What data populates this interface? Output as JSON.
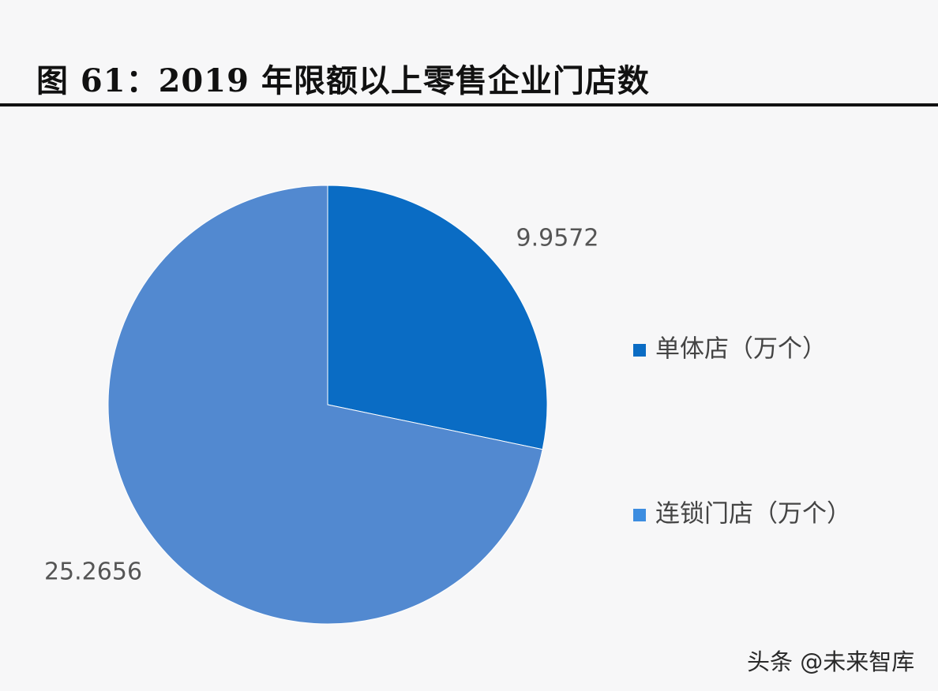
{
  "title": "图 61：2019 年限额以上零售企业门店数",
  "watermark": "头条 @未来智库",
  "chart_data": {
    "type": "pie",
    "title": "图 61：2019 年限额以上零售企业门店数",
    "legend_position": "right",
    "slices": [
      {
        "name": "单体店（万个）",
        "value": 9.9572,
        "label": "9.9572",
        "color": "#0a6cc4"
      },
      {
        "name": "连锁门店（万个）",
        "value": 25.2656,
        "label": "25.2656",
        "color": "#5289d0"
      }
    ],
    "legend_colors": [
      "#0a6cc4",
      "#3d8de0"
    ]
  }
}
